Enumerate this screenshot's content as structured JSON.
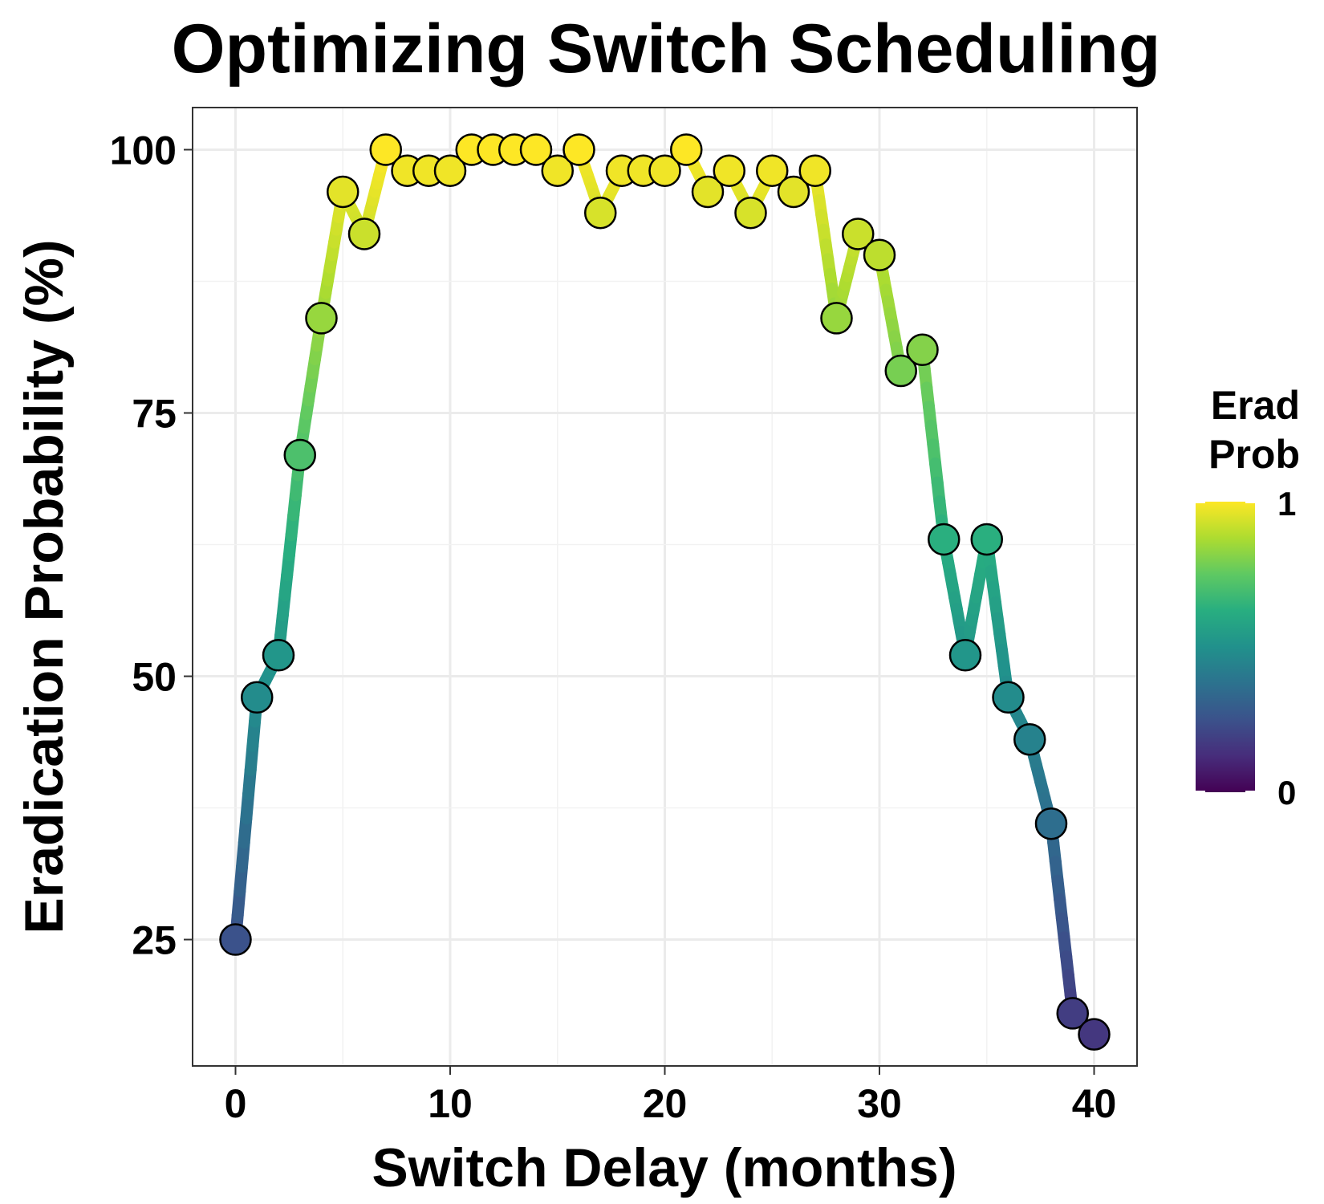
{
  "chart_data": {
    "type": "line",
    "title": "Optimizing Switch Scheduling",
    "xlabel": "Switch Delay (months)",
    "ylabel": "Eradication Probability (%)",
    "xlim": [
      -2,
      42
    ],
    "ylim": [
      13,
      104
    ],
    "x_ticks": [
      0,
      10,
      20,
      30,
      40
    ],
    "y_ticks": [
      25,
      50,
      75,
      100
    ],
    "grid": true,
    "legend": {
      "title_lines": [
        "Erad",
        "Prob"
      ],
      "min_label": "0",
      "max_label": "1",
      "placement": "right",
      "colormap": "viridis"
    },
    "series": [
      {
        "x": [
          0,
          1,
          2,
          3,
          4,
          5,
          6,
          7,
          8,
          9,
          10,
          11,
          12,
          13,
          14,
          15,
          16,
          17,
          18,
          19,
          20,
          21,
          22,
          23,
          24,
          25,
          26,
          27,
          28,
          29,
          30,
          31,
          32,
          33,
          34,
          35,
          36,
          37,
          38,
          39,
          40
        ],
        "values": [
          25,
          48,
          52,
          71,
          84,
          96,
          92,
          100,
          98,
          98,
          98,
          100,
          100,
          100,
          100,
          98,
          100,
          94,
          98,
          98,
          98,
          100,
          96,
          98,
          94,
          98,
          96,
          98,
          84,
          92,
          90,
          79,
          81,
          63,
          52,
          63,
          48,
          44,
          36,
          18,
          16
        ]
      }
    ]
  }
}
